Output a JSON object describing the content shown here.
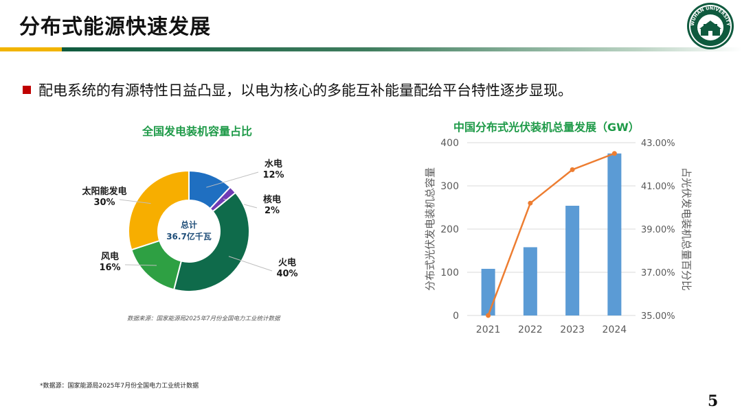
{
  "slide": {
    "title": "分布式能源快速发展",
    "bullet": "配电系统的有源特性日益凸显，以电为核心的多能互补能量配给平台特性逐步显现。",
    "source_note": "数据来源：国家能源局2025年7月份全国电力工业统计数据",
    "footnote": "*数据源：国家能源局2025年7月份全国电力工业统计数据",
    "page_number": "5",
    "logo_text": "WUHAN UNIVERSITY"
  },
  "chart_data": [
    {
      "type": "pie",
      "title": "全国发电装机容量占比",
      "center_label": [
        "总计",
        "36.7亿千瓦"
      ],
      "slices": [
        {
          "name": "水电",
          "label": "12%",
          "value": 12,
          "color": "#1f6fc1"
        },
        {
          "name": "核电",
          "label": "2%",
          "value": 2,
          "color": "#6f3bb5"
        },
        {
          "name": "火电",
          "label": "40%",
          "value": 40,
          "color": "#0f6b4b"
        },
        {
          "name": "风电",
          "label": "16%",
          "value": 16,
          "color": "#2ea043"
        },
        {
          "name": "太阳能发电",
          "label": "30%",
          "value": 30,
          "color": "#f7ae00"
        }
      ]
    },
    {
      "type": "bar",
      "title": "中国分布式光伏装机总量发展（GW）",
      "categories": [
        "2021",
        "2022",
        "2023",
        "2024"
      ],
      "series": [
        {
          "name": "分布式光伏发电装机总容量",
          "values": [
            108,
            158,
            254,
            375
          ],
          "color": "#5b9bd5",
          "axis": "left"
        },
        {
          "name": "占光伏发电装机总量百分比",
          "type": "line",
          "values": [
            35.0,
            40.2,
            41.75,
            42.5
          ],
          "color": "#ed7d31",
          "axis": "right"
        }
      ],
      "ylabel": "分布式光伏发电装机总容量",
      "y2label": "占光伏发电装机总量百分比",
      "ylim": [
        0,
        400
      ],
      "yticks": [
        "0",
        "100",
        "200",
        "300",
        "400"
      ],
      "y2lim": [
        35,
        43
      ],
      "y2ticks": [
        "35.00%",
        "37.00%",
        "39.00%",
        "41.00%",
        "43.00%"
      ],
      "grid": true
    }
  ]
}
